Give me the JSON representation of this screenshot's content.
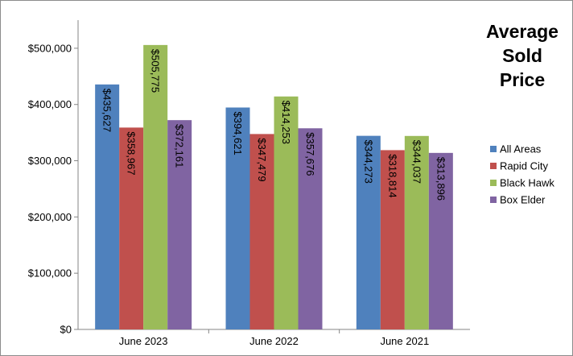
{
  "chart_data": {
    "type": "bar",
    "title_lines": [
      "Average",
      "Sold",
      "Price"
    ],
    "categories": [
      "June 2023",
      "June 2022",
      "June 2021"
    ],
    "series": [
      {
        "name": "All Areas",
        "color": "#4f81bd",
        "values": [
          435627,
          394621,
          344273
        ],
        "labels": [
          "$435,627",
          "$394,621",
          "$344,273"
        ]
      },
      {
        "name": "Rapid City",
        "color": "#c0504d",
        "values": [
          358967,
          347479,
          318814
        ],
        "labels": [
          "$358,967",
          "$347,479",
          "$318,814"
        ]
      },
      {
        "name": "Black Hawk",
        "color": "#9bbb59",
        "values": [
          505775,
          414253,
          344037
        ],
        "labels": [
          "$505,775",
          "$414,253",
          "$344,037"
        ]
      },
      {
        "name": "Box Elder",
        "color": "#8064a2",
        "values": [
          372161,
          357676,
          313896
        ],
        "labels": [
          "$372,161",
          "$357,676",
          "$313,896"
        ]
      }
    ],
    "ylim": [
      0,
      550000
    ],
    "yticks": [
      0,
      100000,
      200000,
      300000,
      400000,
      500000
    ],
    "ytick_labels": [
      "$0",
      "$100,000",
      "$200,000",
      "$300,000",
      "$400,000",
      "$500,000"
    ],
    "legend_position": "right",
    "grid": false
  }
}
